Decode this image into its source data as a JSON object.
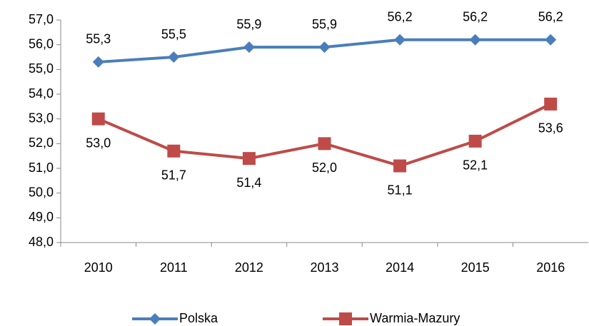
{
  "chart_data": {
    "type": "line",
    "categories": [
      "2010",
      "2011",
      "2012",
      "2013",
      "2014",
      "2015",
      "2016"
    ],
    "series": [
      {
        "name": "Polska",
        "color": "#4a7ebb",
        "marker": "diamond",
        "values": [
          55.3,
          55.5,
          55.9,
          55.9,
          56.2,
          56.2,
          56.2
        ],
        "value_labels": [
          "55,3",
          "55,5",
          "55,9",
          "55,9",
          "56,2",
          "56,2",
          "56,2"
        ]
      },
      {
        "name": "Warmia-Mazury",
        "color": "#be4b48",
        "marker": "square",
        "values": [
          53.0,
          51.7,
          51.4,
          52.0,
          51.1,
          52.1,
          53.6
        ],
        "value_labels": [
          "53,0",
          "51,7",
          "51,4",
          "52,0",
          "51,1",
          "52,1",
          "53,6"
        ]
      }
    ],
    "ylim": [
      48,
      57
    ],
    "yticks": [
      {
        "value": 48,
        "label": "48,0"
      },
      {
        "value": 49,
        "label": "49,0"
      },
      {
        "value": 50,
        "label": "50,0"
      },
      {
        "value": 51,
        "label": "51,0"
      },
      {
        "value": 52,
        "label": "52,0"
      },
      {
        "value": 53,
        "label": "53,0"
      },
      {
        "value": 54,
        "label": "54,0"
      },
      {
        "value": 55,
        "label": "55,0"
      },
      {
        "value": 56,
        "label": "56,0"
      },
      {
        "value": 57,
        "label": "57,0"
      }
    ],
    "legend": "bottom"
  }
}
